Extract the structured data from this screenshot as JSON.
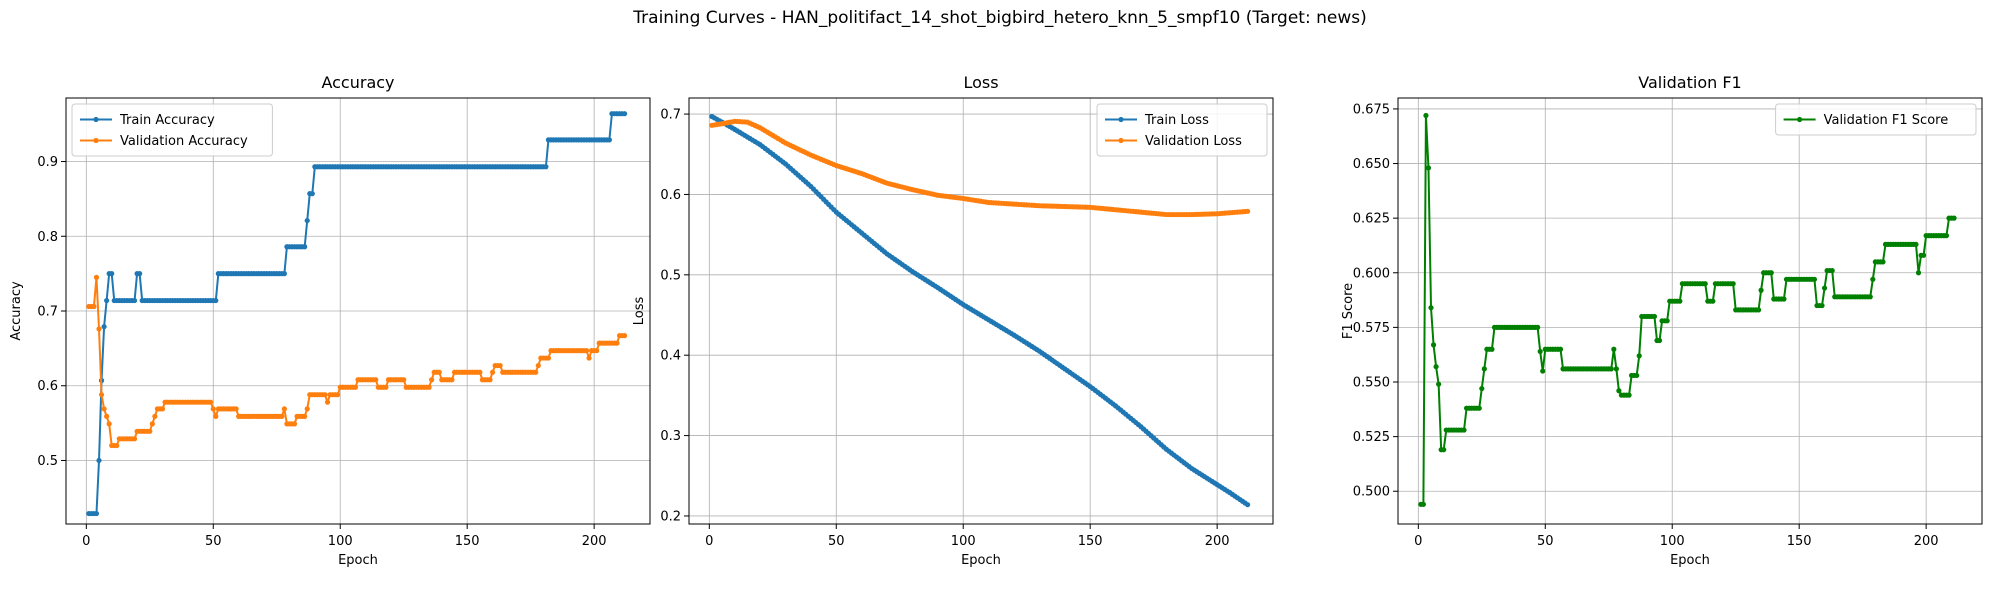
{
  "figure": {
    "suptitle": "Training Curves - HAN_politifact_14_shot_bigbird_hetero_knn_5_smpf10 (Target: news)"
  },
  "chart_data": [
    {
      "type": "line",
      "title": "Accuracy",
      "xlabel": "Epoch",
      "ylabel": "Accuracy",
      "xlim": [
        -8,
        222
      ],
      "ylim": [
        0.415,
        0.985
      ],
      "xticks": [
        0,
        50,
        100,
        150,
        200
      ],
      "yticks": [
        0.5,
        0.6,
        0.7,
        0.8,
        0.9
      ],
      "grid": true,
      "legend": "upper-left",
      "series": [
        {
          "name": "Train Accuracy",
          "color": "#1f77b4",
          "points": [
            [
              1,
              0.429
            ],
            [
              4,
              0.429
            ],
            [
              5,
              0.5
            ],
            [
              6,
              0.607
            ],
            [
              7,
              0.679
            ],
            [
              8,
              0.714
            ],
            [
              9,
              0.75
            ],
            [
              10,
              0.75
            ],
            [
              11,
              0.714
            ],
            [
              19,
              0.714
            ],
            [
              20,
              0.75
            ],
            [
              21,
              0.75
            ],
            [
              22,
              0.714
            ],
            [
              51,
              0.714
            ],
            [
              52,
              0.75
            ],
            [
              78,
              0.75
            ],
            [
              79,
              0.786
            ],
            [
              86,
              0.786
            ],
            [
              87,
              0.821
            ],
            [
              88,
              0.857
            ],
            [
              89,
              0.857
            ],
            [
              90,
              0.893
            ],
            [
              181,
              0.893
            ],
            [
              182,
              0.929
            ],
            [
              206,
              0.929
            ],
            [
              207,
              0.964
            ],
            [
              212,
              0.964
            ]
          ]
        },
        {
          "name": "Validation Accuracy",
          "color": "#ff7f0e",
          "points": [
            [
              1,
              0.706
            ],
            [
              3,
              0.706
            ],
            [
              4,
              0.745
            ],
            [
              5,
              0.676
            ],
            [
              6,
              0.588
            ],
            [
              7,
              0.569
            ],
            [
              8,
              0.559
            ],
            [
              9,
              0.549
            ],
            [
              10,
              0.52
            ],
            [
              12,
              0.52
            ],
            [
              13,
              0.529
            ],
            [
              19,
              0.529
            ],
            [
              20,
              0.539
            ],
            [
              25,
              0.539
            ],
            [
              26,
              0.549
            ],
            [
              27,
              0.559
            ],
            [
              28,
              0.569
            ],
            [
              30,
              0.569
            ],
            [
              31,
              0.578
            ],
            [
              49,
              0.578
            ],
            [
              50,
              0.569
            ],
            [
              51,
              0.559
            ],
            [
              52,
              0.569
            ],
            [
              59,
              0.569
            ],
            [
              60,
              0.559
            ],
            [
              77,
              0.559
            ],
            [
              78,
              0.569
            ],
            [
              79,
              0.549
            ],
            [
              82,
              0.549
            ],
            [
              83,
              0.559
            ],
            [
              86,
              0.559
            ],
            [
              87,
              0.569
            ],
            [
              88,
              0.588
            ],
            [
              94,
              0.588
            ],
            [
              95,
              0.578
            ],
            [
              96,
              0.588
            ],
            [
              99,
              0.588
            ],
            [
              100,
              0.598
            ],
            [
              106,
              0.598
            ],
            [
              107,
              0.608
            ],
            [
              114,
              0.608
            ],
            [
              115,
              0.598
            ],
            [
              118,
              0.598
            ],
            [
              119,
              0.608
            ],
            [
              125,
              0.608
            ],
            [
              126,
              0.598
            ],
            [
              135,
              0.598
            ],
            [
              136,
              0.608
            ],
            [
              137,
              0.618
            ],
            [
              139,
              0.618
            ],
            [
              140,
              0.608
            ],
            [
              144,
              0.608
            ],
            [
              145,
              0.618
            ],
            [
              155,
              0.618
            ],
            [
              156,
              0.608
            ],
            [
              159,
              0.608
            ],
            [
              160,
              0.618
            ],
            [
              161,
              0.627
            ],
            [
              163,
              0.627
            ],
            [
              164,
              0.618
            ],
            [
              177,
              0.618
            ],
            [
              178,
              0.627
            ],
            [
              179,
              0.637
            ],
            [
              182,
              0.637
            ],
            [
              183,
              0.647
            ],
            [
              197,
              0.647
            ],
            [
              198,
              0.637
            ],
            [
              199,
              0.647
            ],
            [
              201,
              0.647
            ],
            [
              202,
              0.657
            ],
            [
              209,
              0.657
            ],
            [
              210,
              0.667
            ],
            [
              212,
              0.667
            ]
          ]
        }
      ]
    },
    {
      "type": "line",
      "title": "Loss",
      "xlabel": "Epoch",
      "ylabel": "Loss",
      "xlim": [
        -8,
        222
      ],
      "ylim": [
        0.19,
        0.72
      ],
      "xticks": [
        0,
        50,
        100,
        150,
        200
      ],
      "yticks": [
        0.2,
        0.3,
        0.4,
        0.5,
        0.6,
        0.7
      ],
      "grid": true,
      "legend": "upper-right",
      "series": [
        {
          "name": "Train Loss",
          "color": "#1f77b4",
          "points": [
            [
              1,
              0.697
            ],
            [
              5,
              0.69
            ],
            [
              10,
              0.681
            ],
            [
              20,
              0.662
            ],
            [
              30,
              0.638
            ],
            [
              40,
              0.61
            ],
            [
              50,
              0.578
            ],
            [
              60,
              0.552
            ],
            [
              70,
              0.526
            ],
            [
              80,
              0.504
            ],
            [
              90,
              0.484
            ],
            [
              100,
              0.463
            ],
            [
              110,
              0.444
            ],
            [
              120,
              0.425
            ],
            [
              130,
              0.405
            ],
            [
              140,
              0.383
            ],
            [
              150,
              0.361
            ],
            [
              160,
              0.337
            ],
            [
              170,
              0.311
            ],
            [
              180,
              0.283
            ],
            [
              190,
              0.259
            ],
            [
              200,
              0.239
            ],
            [
              205,
              0.229
            ],
            [
              212,
              0.214
            ]
          ]
        },
        {
          "name": "Validation Loss",
          "color": "#ff7f0e",
          "points": [
            [
              1,
              0.686
            ],
            [
              5,
              0.688
            ],
            [
              10,
              0.691
            ],
            [
              15,
              0.69
            ],
            [
              20,
              0.683
            ],
            [
              30,
              0.664
            ],
            [
              40,
              0.649
            ],
            [
              50,
              0.636
            ],
            [
              60,
              0.626
            ],
            [
              70,
              0.614
            ],
            [
              80,
              0.606
            ],
            [
              90,
              0.599
            ],
            [
              100,
              0.595
            ],
            [
              110,
              0.59
            ],
            [
              120,
              0.588
            ],
            [
              130,
              0.586
            ],
            [
              140,
              0.585
            ],
            [
              150,
              0.584
            ],
            [
              160,
              0.581
            ],
            [
              170,
              0.578
            ],
            [
              180,
              0.575
            ],
            [
              190,
              0.575
            ],
            [
              200,
              0.576
            ],
            [
              212,
              0.579
            ]
          ]
        }
      ]
    },
    {
      "type": "line",
      "title": "Validation F1",
      "xlabel": "Epoch",
      "ylabel": "F1 Score",
      "xlim": [
        -8,
        222
      ],
      "ylim": [
        0.485,
        0.68
      ],
      "xticks": [
        0,
        50,
        100,
        150,
        200
      ],
      "yticks": [
        0.5,
        0.525,
        0.55,
        0.575,
        0.6,
        0.625,
        0.65,
        0.675
      ],
      "grid": true,
      "legend": "upper-right",
      "series": [
        {
          "name": "Validation F1 Score",
          "color": "#008000",
          "points": [
            [
              1,
              0.494
            ],
            [
              2,
              0.494
            ],
            [
              3,
              0.672
            ],
            [
              4,
              0.648
            ],
            [
              5,
              0.584
            ],
            [
              6,
              0.567
            ],
            [
              7,
              0.557
            ],
            [
              8,
              0.549
            ],
            [
              9,
              0.519
            ],
            [
              10,
              0.519
            ],
            [
              11,
              0.528
            ],
            [
              18,
              0.528
            ],
            [
              19,
              0.538
            ],
            [
              24,
              0.538
            ],
            [
              25,
              0.547
            ],
            [
              26,
              0.556
            ],
            [
              27,
              0.565
            ],
            [
              29,
              0.565
            ],
            [
              30,
              0.575
            ],
            [
              47,
              0.575
            ],
            [
              48,
              0.564
            ],
            [
              49,
              0.555
            ],
            [
              50,
              0.565
            ],
            [
              56,
              0.565
            ],
            [
              57,
              0.556
            ],
            [
              76,
              0.556
            ],
            [
              77,
              0.565
            ],
            [
              78,
              0.556
            ],
            [
              79,
              0.546
            ],
            [
              80,
              0.544
            ],
            [
              83,
              0.544
            ],
            [
              84,
              0.553
            ],
            [
              86,
              0.553
            ],
            [
              87,
              0.562
            ],
            [
              88,
              0.58
            ],
            [
              93,
              0.58
            ],
            [
              94,
              0.569
            ],
            [
              95,
              0.569
            ],
            [
              96,
              0.578
            ],
            [
              98,
              0.578
            ],
            [
              99,
              0.587
            ],
            [
              103,
              0.587
            ],
            [
              104,
              0.595
            ],
            [
              113,
              0.595
            ],
            [
              114,
              0.587
            ],
            [
              116,
              0.587
            ],
            [
              117,
              0.595
            ],
            [
              124,
              0.595
            ],
            [
              125,
              0.583
            ],
            [
              134,
              0.583
            ],
            [
              135,
              0.592
            ],
            [
              136,
              0.6
            ],
            [
              139,
              0.6
            ],
            [
              140,
              0.588
            ],
            [
              144,
              0.588
            ],
            [
              145,
              0.597
            ],
            [
              156,
              0.597
            ],
            [
              157,
              0.585
            ],
            [
              159,
              0.585
            ],
            [
              160,
              0.593
            ],
            [
              161,
              0.601
            ],
            [
              163,
              0.601
            ],
            [
              164,
              0.589
            ],
            [
              178,
              0.589
            ],
            [
              179,
              0.597
            ],
            [
              180,
              0.605
            ],
            [
              183,
              0.605
            ],
            [
              184,
              0.613
            ],
            [
              196,
              0.613
            ],
            [
              197,
              0.6
            ],
            [
              198,
              0.608
            ],
            [
              199,
              0.608
            ],
            [
              200,
              0.617
            ],
            [
              208,
              0.617
            ],
            [
              209,
              0.625
            ],
            [
              211,
              0.625
            ]
          ]
        }
      ]
    }
  ]
}
